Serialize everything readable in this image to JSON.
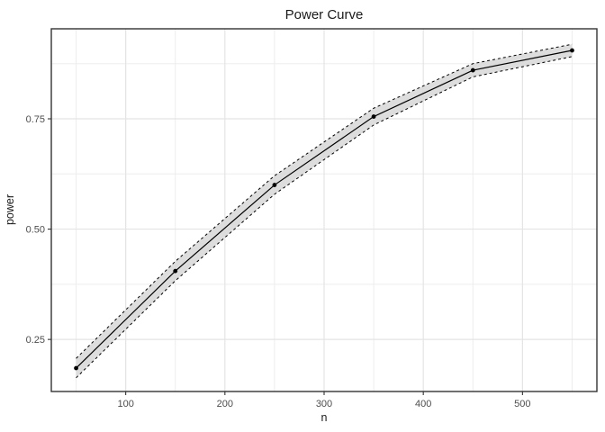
{
  "chart_data": {
    "type": "line",
    "title": "Power Curve",
    "xlabel": "n",
    "ylabel": "power",
    "x": [
      50,
      150,
      250,
      350,
      450,
      550
    ],
    "series": [
      {
        "name": "power",
        "values": [
          0.185,
          0.405,
          0.6,
          0.755,
          0.86,
          0.905
        ]
      }
    ],
    "ci_lower": [
      0.163,
      0.383,
      0.579,
      0.736,
      0.845,
      0.891
    ],
    "ci_upper": [
      0.207,
      0.427,
      0.621,
      0.774,
      0.875,
      0.919
    ],
    "xlim": [
      25,
      575
    ],
    "ylim": [
      0.132,
      0.954
    ],
    "x_ticks": [
      100,
      200,
      300,
      400,
      500
    ],
    "x_tick_labels": [
      "100",
      "200",
      "300",
      "400",
      "500"
    ],
    "x_minor_ticks": [
      50,
      150,
      250,
      350,
      450,
      550
    ],
    "y_ticks": [
      0.25,
      0.5,
      0.75
    ],
    "y_tick_labels": [
      "0.25",
      "0.50",
      "0.75"
    ],
    "y_minor_ticks": [
      0.125,
      0.375,
      0.625,
      0.875
    ],
    "grid": "on",
    "legend_position": "none",
    "colors": {
      "line": "#000000",
      "point": "#000000",
      "ribbon_fill": "#d9d9d9",
      "ribbon_edge": "#000000",
      "grid_major": "#e4e4e4",
      "grid_minor": "#ededed",
      "panel_border": "#333333",
      "tick_mark": "#333333",
      "tick_label": "#4d4d4d",
      "background": "#ffffff"
    }
  }
}
